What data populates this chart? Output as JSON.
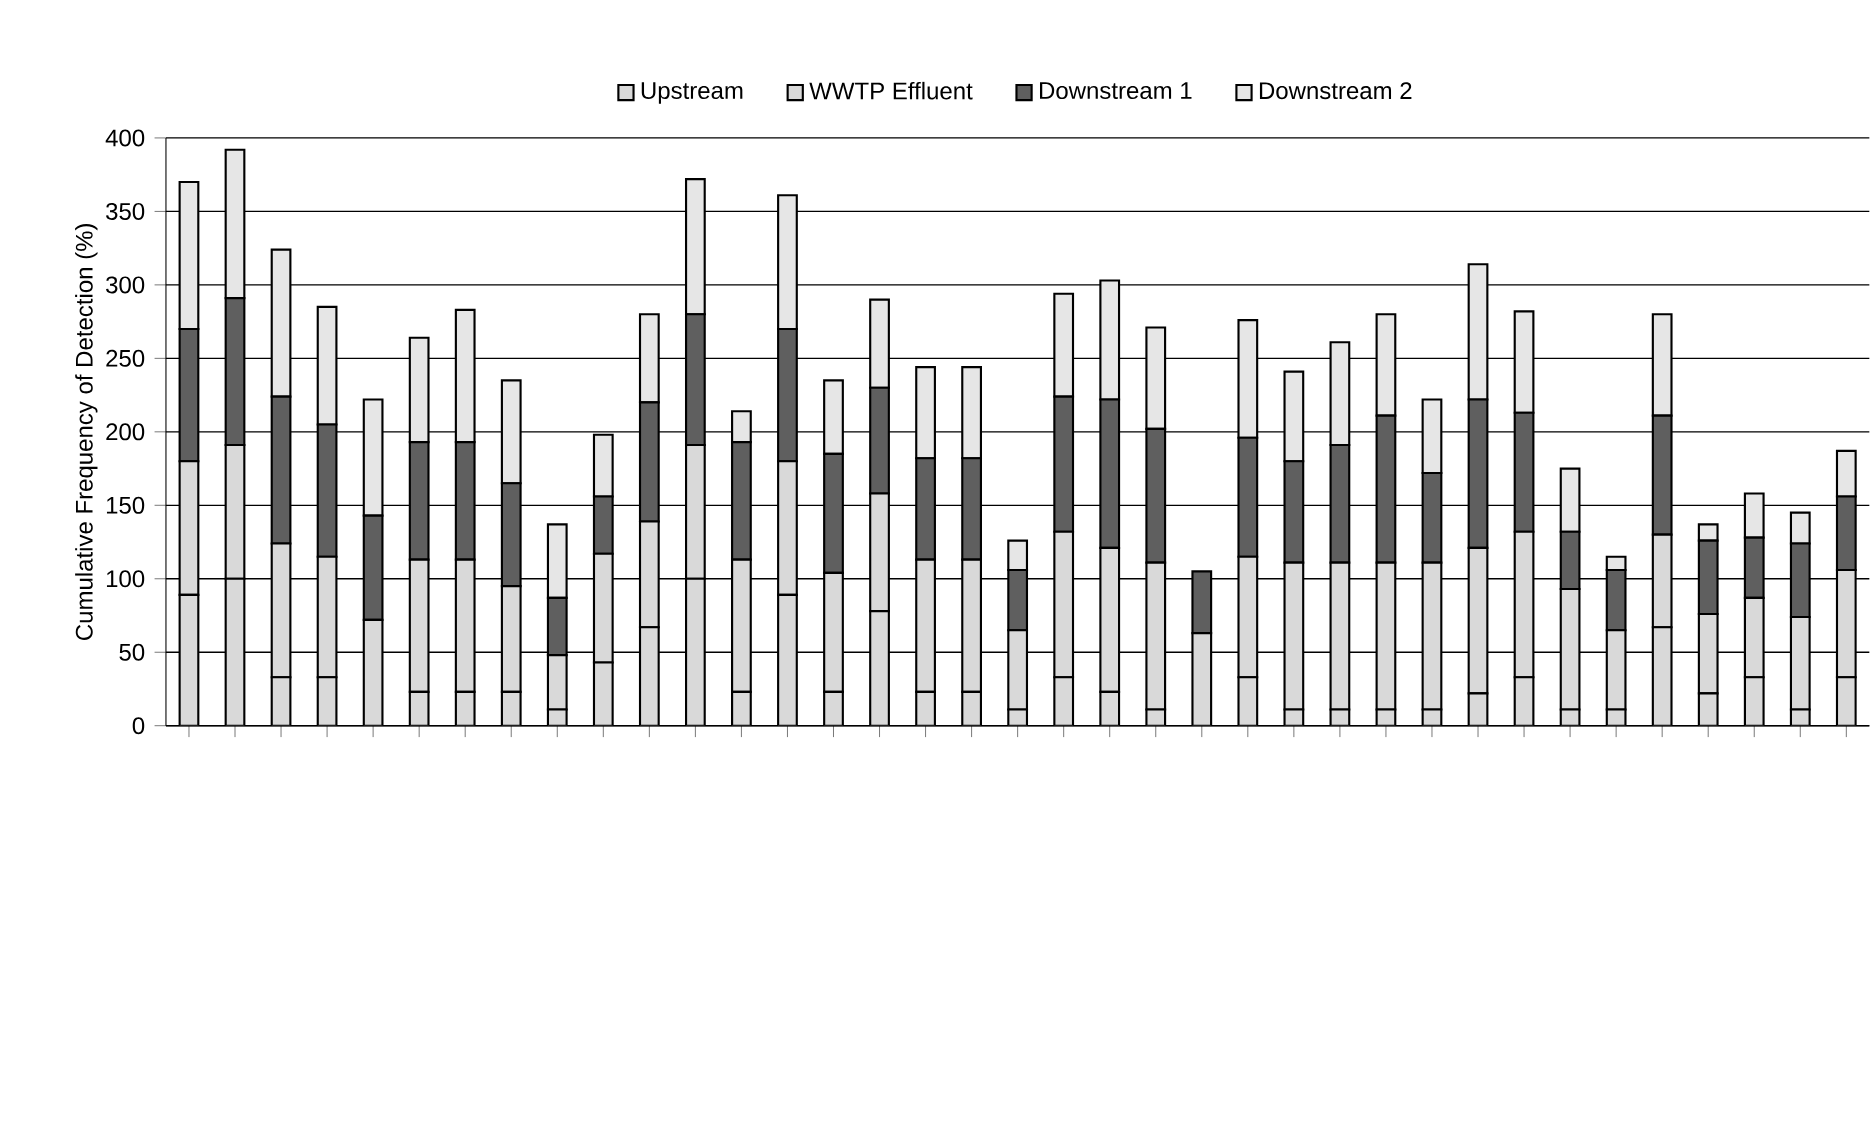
{
  "chart_data": {
    "type": "bar",
    "stacked": true,
    "ylabel": "Cumulative Frequency of Detection (%)",
    "categories": [
      null,
      null,
      null,
      null,
      null,
      null,
      null,
      null,
      null,
      null,
      null,
      null,
      null,
      null,
      null,
      null,
      null,
      null,
      null,
      null,
      null,
      null,
      null,
      null,
      null,
      null,
      null,
      null,
      null,
      null,
      null,
      null,
      null,
      null,
      null,
      null,
      null
    ],
    "series": [
      {
        "name": "Upstream",
        "color": "#d9d9d9",
        "values": [
          89,
          100,
          33,
          33,
          0,
          23,
          23,
          23,
          11,
          43,
          67,
          100,
          23,
          89,
          23,
          78,
          23,
          23,
          11,
          33,
          23,
          11,
          0,
          33,
          11,
          11,
          11,
          11,
          22,
          33,
          11,
          11,
          67,
          22,
          33,
          11,
          33
        ]
      },
      {
        "name": "WWTP Effluent",
        "color": "#d9d9d9",
        "values": [
          91,
          91,
          91,
          82,
          72,
          90,
          90,
          72,
          37,
          74,
          72,
          91,
          90,
          91,
          81,
          80,
          90,
          90,
          54,
          99,
          98,
          100,
          63,
          82,
          100,
          100,
          100,
          100,
          99,
          99,
          82,
          54,
          63,
          54,
          54,
          63,
          73
        ]
      },
      {
        "name": "Downstream 1",
        "color": "#5f5f5f",
        "values": [
          90,
          100,
          100,
          90,
          71,
          80,
          80,
          70,
          39,
          39,
          81,
          89,
          80,
          90,
          81,
          72,
          69,
          69,
          41,
          92,
          101,
          91,
          42,
          81,
          69,
          80,
          100,
          61,
          101,
          81,
          39,
          41,
          81,
          50,
          41,
          50,
          50
        ]
      },
      {
        "name": "Downstream 2",
        "color": "#e6e6e6",
        "values": [
          100,
          101,
          100,
          80,
          79,
          71,
          90,
          70,
          50,
          42,
          60,
          92,
          21,
          91,
          50,
          60,
          62,
          62,
          20,
          70,
          81,
          69,
          0,
          80,
          61,
          70,
          69,
          50,
          92,
          69,
          43,
          9,
          69,
          11,
          30,
          21,
          31
        ]
      }
    ],
    "ylim": [
      0,
      400
    ],
    "yticks": [
      0,
      50,
      100,
      150,
      200,
      250,
      300,
      350,
      400
    ],
    "grid": "y",
    "legend": "top"
  }
}
